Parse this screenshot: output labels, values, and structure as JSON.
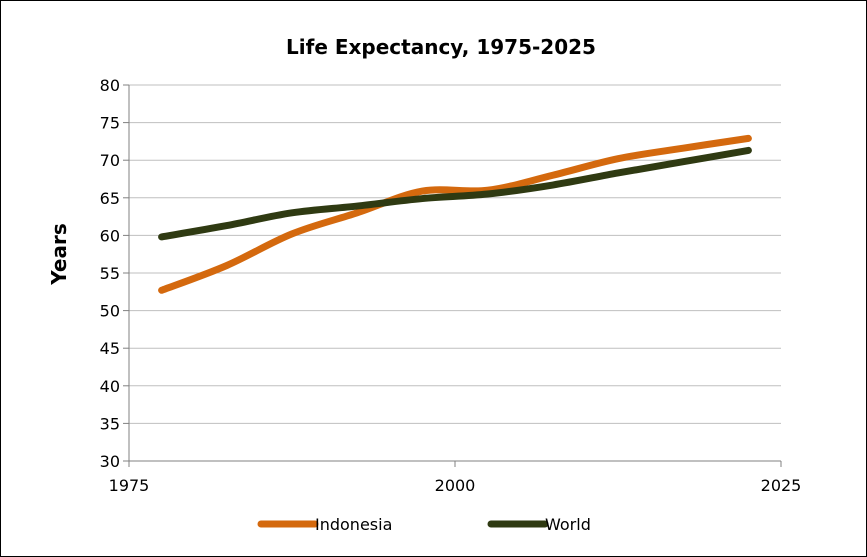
{
  "chart_data": {
    "type": "line",
    "title": "Life Expectancy, 1975-2025",
    "xlabel": "",
    "ylabel": "Years",
    "xlim": [
      1975,
      2025
    ],
    "ylim": [
      30,
      80
    ],
    "x_ticks": [
      "1975",
      "2000",
      "2025"
    ],
    "y_ticks": [
      "30",
      "35",
      "40",
      "45",
      "50",
      "55",
      "60",
      "65",
      "70",
      "75",
      "80"
    ],
    "grid": "horizontal",
    "legend_position": "bottom",
    "series": [
      {
        "name": "Indonesia",
        "color": "#D4690E",
        "x": [
          1977.5,
          1982.5,
          1987.5,
          1992.5,
          1997.5,
          2002.5,
          2007.5,
          2012.5,
          2017.5,
          2022.5
        ],
        "values": [
          52.7,
          56.0,
          60.2,
          63.0,
          65.9,
          66.0,
          68.0,
          70.2,
          71.6,
          72.9
        ]
      },
      {
        "name": "World",
        "color": "#2F3A12",
        "x": [
          1977.5,
          1982.5,
          1987.5,
          1992.5,
          1997.5,
          2002.5,
          2007.5,
          2012.5,
          2017.5,
          2022.5
        ],
        "values": [
          59.8,
          61.3,
          63.0,
          63.9,
          64.9,
          65.5,
          66.7,
          68.3,
          69.8,
          71.3
        ]
      }
    ]
  }
}
